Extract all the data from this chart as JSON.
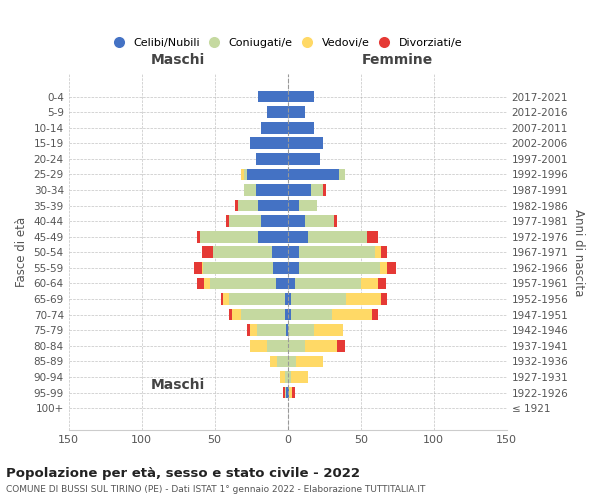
{
  "age_groups": [
    "100+",
    "95-99",
    "90-94",
    "85-89",
    "80-84",
    "75-79",
    "70-74",
    "65-69",
    "60-64",
    "55-59",
    "50-54",
    "45-49",
    "40-44",
    "35-39",
    "30-34",
    "25-29",
    "20-24",
    "15-19",
    "10-14",
    "5-9",
    "0-4"
  ],
  "birth_years": [
    "≤ 1921",
    "1922-1926",
    "1927-1931",
    "1932-1936",
    "1937-1941",
    "1942-1946",
    "1947-1951",
    "1952-1956",
    "1957-1961",
    "1962-1966",
    "1967-1971",
    "1972-1976",
    "1977-1981",
    "1982-1986",
    "1987-1991",
    "1992-1996",
    "1997-2001",
    "2002-2006",
    "2007-2011",
    "2012-2016",
    "2017-2021"
  ],
  "males": {
    "celibi": [
      0,
      1,
      0,
      0,
      0,
      1,
      2,
      2,
      8,
      10,
      11,
      20,
      18,
      20,
      22,
      28,
      22,
      26,
      18,
      14,
      20
    ],
    "coniugati": [
      0,
      1,
      2,
      7,
      14,
      20,
      30,
      38,
      45,
      48,
      40,
      40,
      22,
      14,
      8,
      2,
      0,
      0,
      0,
      0,
      0
    ],
    "vedovi": [
      0,
      0,
      3,
      5,
      12,
      5,
      6,
      4,
      4,
      1,
      0,
      0,
      0,
      0,
      0,
      2,
      0,
      0,
      0,
      0,
      0
    ],
    "divorziati": [
      0,
      1,
      0,
      0,
      0,
      2,
      2,
      2,
      5,
      5,
      8,
      2,
      2,
      2,
      0,
      0,
      0,
      0,
      0,
      0,
      0
    ]
  },
  "females": {
    "nubili": [
      0,
      1,
      0,
      0,
      0,
      0,
      2,
      2,
      5,
      8,
      8,
      14,
      12,
      8,
      16,
      35,
      22,
      24,
      18,
      12,
      18
    ],
    "coniugate": [
      0,
      0,
      2,
      6,
      12,
      18,
      28,
      38,
      45,
      55,
      52,
      40,
      20,
      12,
      8,
      4,
      0,
      0,
      0,
      0,
      0
    ],
    "vedove": [
      0,
      2,
      12,
      18,
      22,
      20,
      28,
      24,
      12,
      5,
      4,
      0,
      0,
      0,
      0,
      0,
      0,
      0,
      0,
      0,
      0
    ],
    "divorziate": [
      0,
      2,
      0,
      0,
      5,
      0,
      4,
      4,
      5,
      6,
      4,
      8,
      2,
      0,
      2,
      0,
      0,
      0,
      0,
      0,
      0
    ]
  },
  "colors": {
    "celibi": "#4472c4",
    "coniugati": "#c5d9a0",
    "vedovi": "#ffd966",
    "divorziati": "#e53935"
  },
  "xlim": 150,
  "title": "Popolazione per età, sesso e stato civile - 2022",
  "subtitle": "COMUNE DI BUSSI SUL TIRINO (PE) - Dati ISTAT 1° gennaio 2022 - Elaborazione TUTTITALIA.IT",
  "ylabel_left": "Fasce di età",
  "ylabel_right": "Anni di nascita",
  "legend_labels": [
    "Celibi/Nubili",
    "Coniugati/e",
    "Vedovi/e",
    "Divorziati/e"
  ],
  "maschi_label": "Maschi",
  "femmine_label": "Femmine"
}
